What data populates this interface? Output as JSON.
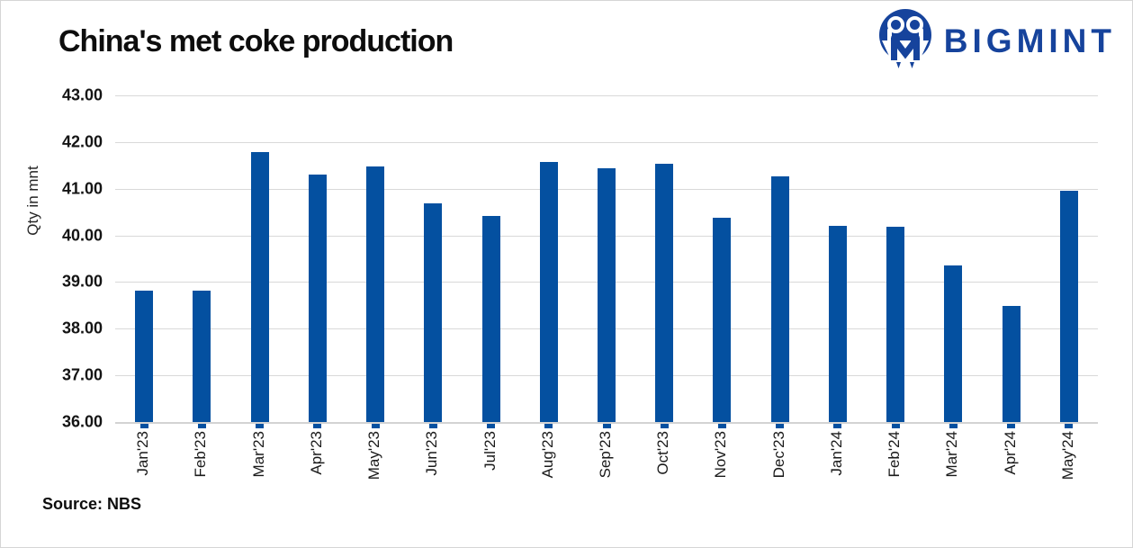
{
  "header": {
    "title": "China's met coke production",
    "brand": "BIGMINT"
  },
  "icons": {
    "brand_logo": "bigmint-people-m-logo-icon"
  },
  "footer": {
    "source": "Source: NBS"
  },
  "colors": {
    "bar": "#0450a0",
    "gridline": "#d9d9d9",
    "brand_blue": "#16439c"
  },
  "chart_data": {
    "type": "bar",
    "title": "China's met coke production",
    "xlabel": "",
    "ylabel": "Qty in mnt",
    "ylim": [
      36.0,
      43.0
    ],
    "ytick_step": 1.0,
    "ytick_decimals": 2,
    "grid": true,
    "legend_position": "none",
    "categories": [
      "Jan'23",
      "Feb'23",
      "Mar'23",
      "Apr'23",
      "May'23",
      "Jun'23",
      "Jul'23",
      "Aug'23",
      "Sep'23",
      "Oct'23",
      "Nov'23",
      "Dec'23",
      "Jan'24",
      "Feb'24",
      "Mar'24",
      "Apr'24",
      "May'24"
    ],
    "values": [
      38.82,
      38.82,
      41.79,
      41.3,
      41.48,
      40.69,
      40.42,
      41.58,
      41.43,
      41.54,
      40.37,
      41.27,
      40.2,
      40.18,
      39.36,
      38.49,
      40.96
    ]
  }
}
